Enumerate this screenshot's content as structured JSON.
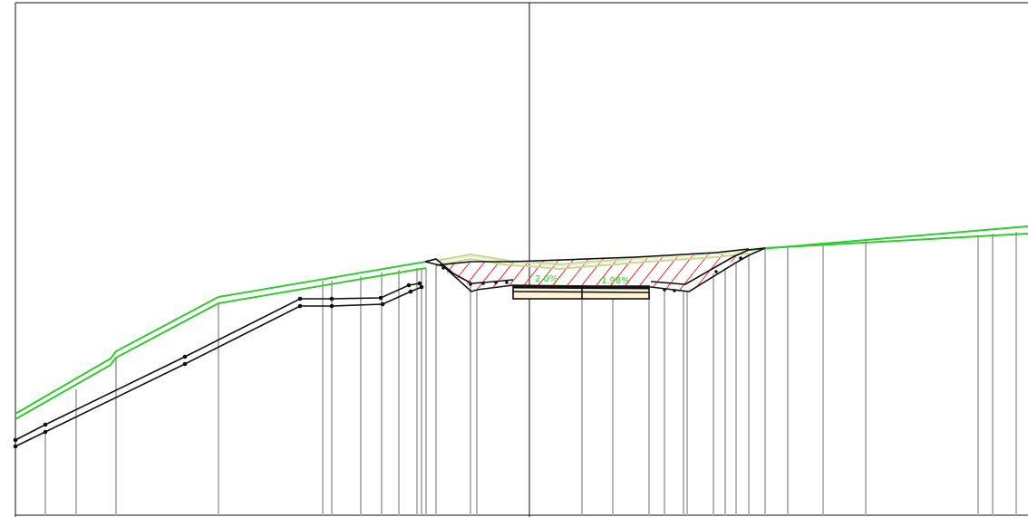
{
  "drawing": {
    "slope_labels": {
      "left": "2.0%",
      "right": "1.98%"
    },
    "colors": {
      "frame": "#111111",
      "ground_line": "#2ecc2e",
      "existing_grade": "#c8d890",
      "hatch": "#ff2222",
      "station_lines": "#b5b5b5",
      "slab_fill": "#fff3d6"
    }
  }
}
